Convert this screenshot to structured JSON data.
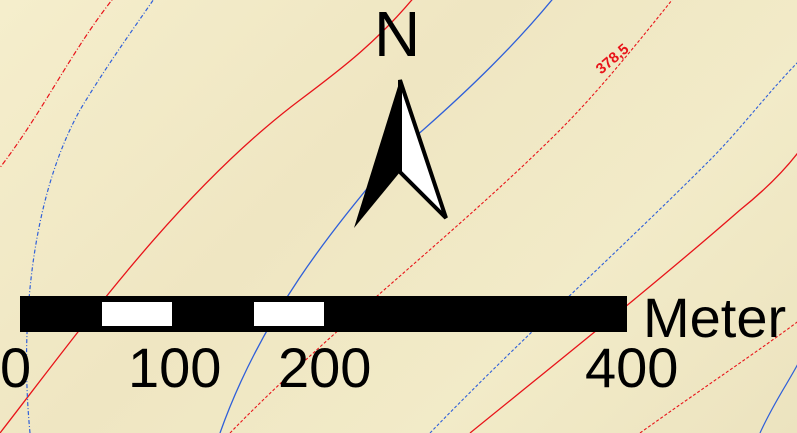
{
  "map": {
    "contour_label": "378,5",
    "contour_colors": {
      "index_contour": "#e8141a",
      "secondary_contour": "#2f5fd9"
    },
    "background_color": "#f3ecc9"
  },
  "north_arrow": {
    "letter": "N",
    "icon": "north-arrow-icon"
  },
  "scale_bar": {
    "unit": "Meter",
    "ticks": [
      "0",
      "100",
      "200",
      "400"
    ],
    "colors": {
      "dark": "#000000",
      "light": "#ffffff"
    }
  }
}
